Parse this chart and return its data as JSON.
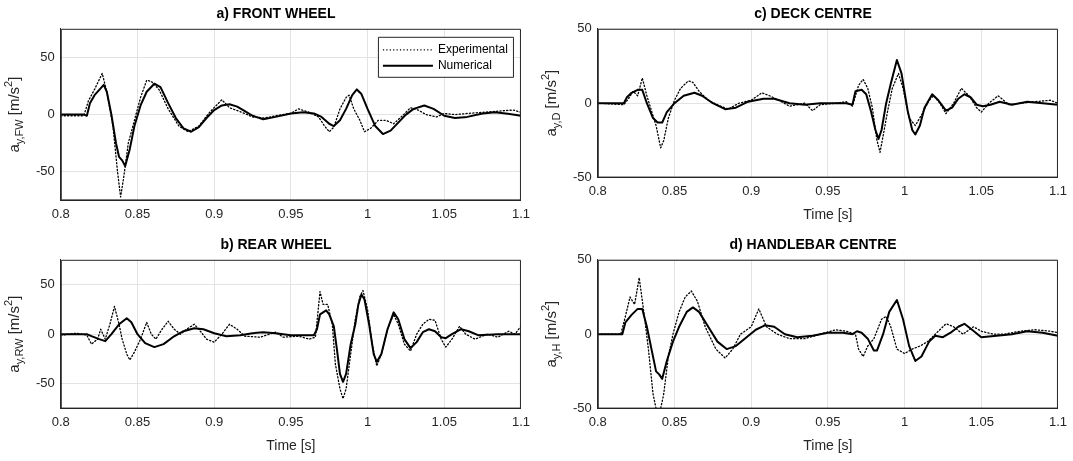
{
  "chart_data": [
    {
      "type": "line",
      "title": "a) FRONT WHEEL",
      "ylabel": "a$_{y,FW}$ [m/s$^{2}$]",
      "xlim": [
        0.8,
        1.1
      ],
      "xticks": [
        0.8,
        0.85,
        0.9,
        0.95,
        1,
        1.05,
        1.1
      ],
      "ylim": [
        -75,
        75
      ],
      "yticks": [
        -50,
        0,
        50
      ],
      "grid": true,
      "legend": "top right",
      "marker": "none",
      "series": [
        {
          "name": "Experimental",
          "color": "#000000",
          "line_style": "dotted",
          "x": [
            0.8,
            0.815,
            0.818,
            0.822,
            0.827,
            0.83,
            0.834,
            0.837,
            0.839,
            0.841,
            0.844,
            0.848,
            0.852,
            0.856,
            0.859,
            0.864,
            0.87,
            0.877,
            0.883,
            0.89,
            0.897,
            0.905,
            0.91,
            0.918,
            0.925,
            0.933,
            0.94,
            0.95,
            0.955,
            0.962,
            0.968,
            0.972,
            0.975,
            0.978,
            0.982,
            0.986,
            0.988,
            0.991,
            0.995,
            0.998,
            1.002,
            1.007,
            1.012,
            1.017,
            1.022,
            1.028,
            1.033,
            1.038,
            1.045,
            1.05,
            1.057,
            1.065,
            1.075,
            1.085,
            1.095,
            1.1
          ],
          "values": [
            -1,
            -1,
            12,
            22,
            36,
            20,
            -10,
            -50,
            -72,
            -55,
            -25,
            -5,
            15,
            30,
            29,
            22,
            5,
            -10,
            -15,
            -10,
            2,
            13,
            6,
            2,
            -2,
            -3,
            -1,
            1,
            5,
            2,
            -2,
            -10,
            -15,
            -11,
            5,
            15,
            17,
            5,
            -5,
            -15,
            -12,
            -5,
            -5,
            -8,
            -2,
            6,
            4,
            0,
            -2,
            1,
            0,
            1,
            2,
            3,
            4,
            2
          ]
        },
        {
          "name": "Numerical",
          "color": "#000000",
          "line_style": "solid",
          "x": [
            0.8,
            0.815,
            0.817,
            0.819,
            0.822,
            0.828,
            0.83,
            0.833,
            0.836,
            0.838,
            0.84,
            0.842,
            0.845,
            0.848,
            0.852,
            0.856,
            0.861,
            0.865,
            0.87,
            0.875,
            0.88,
            0.885,
            0.89,
            0.895,
            0.9,
            0.905,
            0.91,
            0.915,
            0.92,
            0.925,
            0.932,
            0.94,
            0.95,
            0.958,
            0.965,
            0.97,
            0.975,
            0.978,
            0.982,
            0.986,
            0.99,
            0.993,
            0.996,
            1.0,
            1.005,
            1.01,
            1.015,
            1.02,
            1.025,
            1.03,
            1.037,
            1.043,
            1.05,
            1.057,
            1.065,
            1.075,
            1.083,
            1.09,
            1.1
          ],
          "values": [
            0,
            0,
            -1,
            10,
            17,
            26,
            20,
            0,
            -25,
            -37,
            -40,
            -45,
            -30,
            -10,
            8,
            20,
            27,
            24,
            10,
            -3,
            -12,
            -15,
            -11,
            -3,
            4,
            8,
            9,
            7,
            3,
            -1,
            -4,
            -2,
            1,
            2,
            1,
            -2,
            -8,
            -10,
            -5,
            5,
            17,
            22,
            18,
            5,
            -10,
            -17,
            -14,
            -7,
            0,
            5,
            8,
            5,
            -1,
            -3,
            -2,
            1,
            2,
            1,
            -1
          ]
        }
      ]
    },
    {
      "type": "line",
      "title": "c) DECK CENTRE",
      "xlabel": "Time [s]",
      "ylabel": "a$_{y,D}$ [m/s$^{2}$]",
      "xlim": [
        0.8,
        1.1
      ],
      "xticks": [
        0.8,
        0.85,
        0.9,
        0.95,
        1,
        1.05,
        1.1
      ],
      "ylim": [
        -50,
        50
      ],
      "yticks": [
        -50,
        0,
        50
      ],
      "grid": true,
      "marker": "none",
      "series": [
        {
          "color": "#000000",
          "line_style": "dotted",
          "x": [
            0.8,
            0.817,
            0.82,
            0.823,
            0.826,
            0.829,
            0.832,
            0.835,
            0.838,
            0.841,
            0.843,
            0.846,
            0.85,
            0.854,
            0.859,
            0.862,
            0.866,
            0.872,
            0.88,
            0.885,
            0.892,
            0.9,
            0.907,
            0.912,
            0.918,
            0.925,
            0.935,
            0.94,
            0.945,
            0.955,
            0.962,
            0.966,
            0.97,
            0.973,
            0.976,
            0.979,
            0.982,
            0.984,
            0.986,
            0.989,
            0.992,
            0.996,
            0.999,
            1.003,
            1.007,
            1.011,
            1.016,
            1.019,
            1.023,
            1.027,
            1.032,
            1.037,
            1.042,
            1.047,
            1.05,
            1.055,
            1.061,
            1.068,
            1.075,
            1.085,
            1.095,
            1.1
          ],
          "values": [
            0,
            -1,
            3,
            8,
            5,
            17,
            5,
            -5,
            -15,
            -30,
            -25,
            -10,
            2,
            10,
            15,
            14,
            8,
            2,
            -2,
            -4,
            0,
            2,
            7,
            5,
            2,
            -2,
            0,
            -5,
            -1,
            0,
            1,
            -2,
            12,
            16,
            10,
            -3,
            -25,
            -33,
            -22,
            -5,
            10,
            20,
            10,
            -10,
            -15,
            -8,
            2,
            5,
            0,
            -7,
            0,
            10,
            5,
            -3,
            -6,
            0,
            5,
            -1,
            0,
            1,
            2,
            0
          ]
        },
        {
          "color": "#000000",
          "line_style": "solid",
          "x": [
            0.8,
            0.817,
            0.819,
            0.822,
            0.826,
            0.829,
            0.832,
            0.836,
            0.839,
            0.842,
            0.845,
            0.85,
            0.856,
            0.863,
            0.868,
            0.875,
            0.883,
            0.89,
            0.898,
            0.908,
            0.915,
            0.925,
            0.935,
            0.945,
            0.955,
            0.962,
            0.966,
            0.968,
            0.972,
            0.975,
            0.978,
            0.981,
            0.983,
            0.985,
            0.988,
            0.991,
            0.995,
            0.998,
            1.002,
            1.005,
            1.007,
            1.01,
            1.013,
            1.018,
            1.022,
            1.027,
            1.031,
            1.035,
            1.039,
            1.043,
            1.047,
            1.051,
            1.056,
            1.062,
            1.07,
            1.08,
            1.09,
            1.1
          ],
          "values": [
            0,
            0,
            4,
            7,
            9,
            9,
            0,
            -10,
            -13,
            -13,
            -6,
            0,
            5,
            7,
            5,
            0,
            -4,
            -3,
            1,
            3,
            3,
            0,
            -1,
            0,
            0,
            0,
            -1,
            8,
            9,
            6,
            -5,
            -18,
            -24,
            -18,
            0,
            13,
            29,
            20,
            -5,
            -18,
            -21,
            -15,
            -3,
            6,
            2,
            -5,
            -3,
            3,
            6,
            4,
            -1,
            -2,
            -1,
            1,
            -1,
            1,
            0,
            -1
          ]
        }
      ]
    },
    {
      "type": "line",
      "title": "b) REAR WHEEL",
      "xlabel": "Time [s]",
      "ylabel": "a$_{y,RW}$ [m/s$^{2}$]",
      "xlim": [
        0.8,
        1.1
      ],
      "xticks": [
        0.8,
        0.85,
        0.9,
        0.95,
        1,
        1.05,
        1.1
      ],
      "ylim": [
        -75,
        75
      ],
      "yticks": [
        -50,
        0,
        50
      ],
      "grid": true,
      "marker": "none",
      "series": [
        {
          "color": "#000000",
          "line_style": "dotted",
          "x": [
            0.8,
            0.81,
            0.817,
            0.82,
            0.824,
            0.826,
            0.829,
            0.832,
            0.835,
            0.838,
            0.84,
            0.843,
            0.845,
            0.848,
            0.852,
            0.856,
            0.859,
            0.862,
            0.866,
            0.87,
            0.874,
            0.878,
            0.882,
            0.887,
            0.89,
            0.895,
            0.9,
            0.905,
            0.91,
            0.915,
            0.92,
            0.93,
            0.94,
            0.945,
            0.955,
            0.962,
            0.966,
            0.969,
            0.971,
            0.974,
            0.977,
            0.979,
            0.982,
            0.984,
            0.986,
            0.989,
            0.992,
            0.995,
            0.997,
            1.0,
            1.003,
            1.006,
            1.009,
            1.013,
            1.017,
            1.02,
            1.024,
            1.028,
            1.032,
            1.036,
            1.04,
            1.044,
            1.048,
            1.051,
            1.055,
            1.06,
            1.064,
            1.07,
            1.078,
            1.085,
            1.092,
            1.096,
            1.1
          ],
          "values": [
            -1,
            1,
            -1,
            -10,
            -5,
            5,
            -5,
            10,
            28,
            10,
            -5,
            -20,
            -26,
            -18,
            -5,
            12,
            0,
            -5,
            5,
            13,
            5,
            0,
            5,
            10,
            5,
            -5,
            -8,
            0,
            10,
            5,
            -2,
            -3,
            2,
            -3,
            -2,
            -5,
            -3,
            43,
            30,
            30,
            10,
            -30,
            -55,
            -65,
            -55,
            -20,
            15,
            38,
            44,
            25,
            -10,
            -32,
            -20,
            5,
            20,
            10,
            -10,
            -17,
            0,
            10,
            15,
            14,
            -5,
            -13,
            -5,
            8,
            0,
            -5,
            0,
            -3,
            3,
            0,
            8
          ]
        },
        {
          "color": "#000000",
          "line_style": "solid",
          "x": [
            0.8,
            0.817,
            0.82,
            0.825,
            0.829,
            0.833,
            0.838,
            0.843,
            0.846,
            0.85,
            0.855,
            0.861,
            0.867,
            0.873,
            0.88,
            0.887,
            0.893,
            0.9,
            0.908,
            0.917,
            0.925,
            0.932,
            0.94,
            0.95,
            0.96,
            0.965,
            0.967,
            0.969,
            0.973,
            0.975,
            0.978,
            0.98,
            0.982,
            0.984,
            0.986,
            0.989,
            0.992,
            0.994,
            0.996,
            0.998,
            1.001,
            1.004,
            1.006,
            1.009,
            1.013,
            1.017,
            1.02,
            1.024,
            1.028,
            1.032,
            1.036,
            1.04,
            1.044,
            1.048,
            1.051,
            1.055,
            1.061,
            1.066,
            1.072,
            1.085,
            1.1
          ],
          "values": [
            0,
            0,
            -2,
            -5,
            -7,
            0,
            10,
            16,
            12,
            0,
            -9,
            -13,
            -10,
            -3,
            3,
            6,
            5,
            1,
            -2,
            -1,
            1,
            2,
            1,
            -1,
            -1,
            -1,
            5,
            20,
            24,
            20,
            8,
            -15,
            -40,
            -48,
            -40,
            -10,
            10,
            30,
            40,
            35,
            10,
            -20,
            -28,
            -20,
            5,
            22,
            15,
            -5,
            -14,
            -8,
            2,
            5,
            3,
            -3,
            -4,
            0,
            5,
            3,
            -1,
            0,
            0
          ]
        }
      ]
    },
    {
      "type": "line",
      "title": "d) HANDLEBAR CENTRE",
      "xlabel": "Time [s]",
      "ylabel": "a$_{y,H}$ [m/s$^{2}$]",
      "xlim": [
        0.8,
        1.1
      ],
      "xticks": [
        0.8,
        0.85,
        0.9,
        0.95,
        1,
        1.05,
        1.1
      ],
      "ylim": [
        -50,
        50
      ],
      "yticks": [
        -50,
        0,
        50
      ],
      "grid": true,
      "marker": "none",
      "series": [
        {
          "color": "#000000",
          "line_style": "dotted",
          "x": [
            0.8,
            0.815,
            0.818,
            0.821,
            0.824,
            0.827,
            0.83,
            0.833,
            0.836,
            0.838,
            0.841,
            0.843,
            0.846,
            0.849,
            0.853,
            0.857,
            0.861,
            0.865,
            0.87,
            0.877,
            0.883,
            0.888,
            0.893,
            0.9,
            0.905,
            0.91,
            0.917,
            0.925,
            0.935,
            0.945,
            0.955,
            0.962,
            0.968,
            0.97,
            0.973,
            0.976,
            0.98,
            0.985,
            0.988,
            0.991,
            0.995,
            1.0,
            1.005,
            1.01,
            1.015,
            1.02,
            1.027,
            1.032,
            1.038,
            1.045,
            1.05,
            1.058,
            1.065,
            1.075,
            1.085,
            1.095,
            1.1
          ],
          "values": [
            0,
            0,
            12,
            25,
            20,
            38,
            15,
            -10,
            -40,
            -50,
            -50,
            -40,
            -15,
            0,
            15,
            25,
            29,
            22,
            5,
            -10,
            -16,
            -10,
            0,
            5,
            17,
            5,
            0,
            -3,
            -3,
            0,
            3,
            2,
            0,
            -10,
            -15,
            -8,
            -3,
            10,
            12,
            5,
            -10,
            -13,
            -10,
            -8,
            -5,
            0,
            7,
            5,
            0,
            5,
            2,
            0,
            0,
            2,
            3,
            2,
            1
          ]
        },
        {
          "color": "#000000",
          "line_style": "solid",
          "x": [
            0.8,
            0.816,
            0.818,
            0.822,
            0.826,
            0.829,
            0.832,
            0.835,
            0.838,
            0.84,
            0.842,
            0.845,
            0.849,
            0.853,
            0.858,
            0.862,
            0.866,
            0.872,
            0.878,
            0.884,
            0.89,
            0.897,
            0.903,
            0.909,
            0.915,
            0.922,
            0.93,
            0.94,
            0.95,
            0.96,
            0.966,
            0.969,
            0.972,
            0.976,
            0.98,
            0.982,
            0.986,
            0.99,
            0.995,
            0.999,
            1.003,
            1.007,
            1.011,
            1.016,
            1.02,
            1.025,
            1.03,
            1.035,
            1.039,
            1.044,
            1.05,
            1.06,
            1.07,
            1.08,
            1.09,
            1.1
          ],
          "values": [
            0,
            0,
            8,
            13,
            17,
            17,
            5,
            -10,
            -25,
            -27,
            -30,
            -18,
            -5,
            5,
            15,
            18,
            15,
            5,
            -5,
            -10,
            -8,
            -2,
            3,
            6,
            5,
            0,
            -2,
            -1,
            1,
            1,
            0,
            2,
            1,
            -3,
            -11,
            -11,
            0,
            15,
            23,
            10,
            -8,
            -18,
            -15,
            -5,
            -1,
            -2,
            1,
            5,
            7,
            3,
            -2,
            -1,
            0,
            2,
            1,
            -1
          ]
        }
      ]
    }
  ]
}
